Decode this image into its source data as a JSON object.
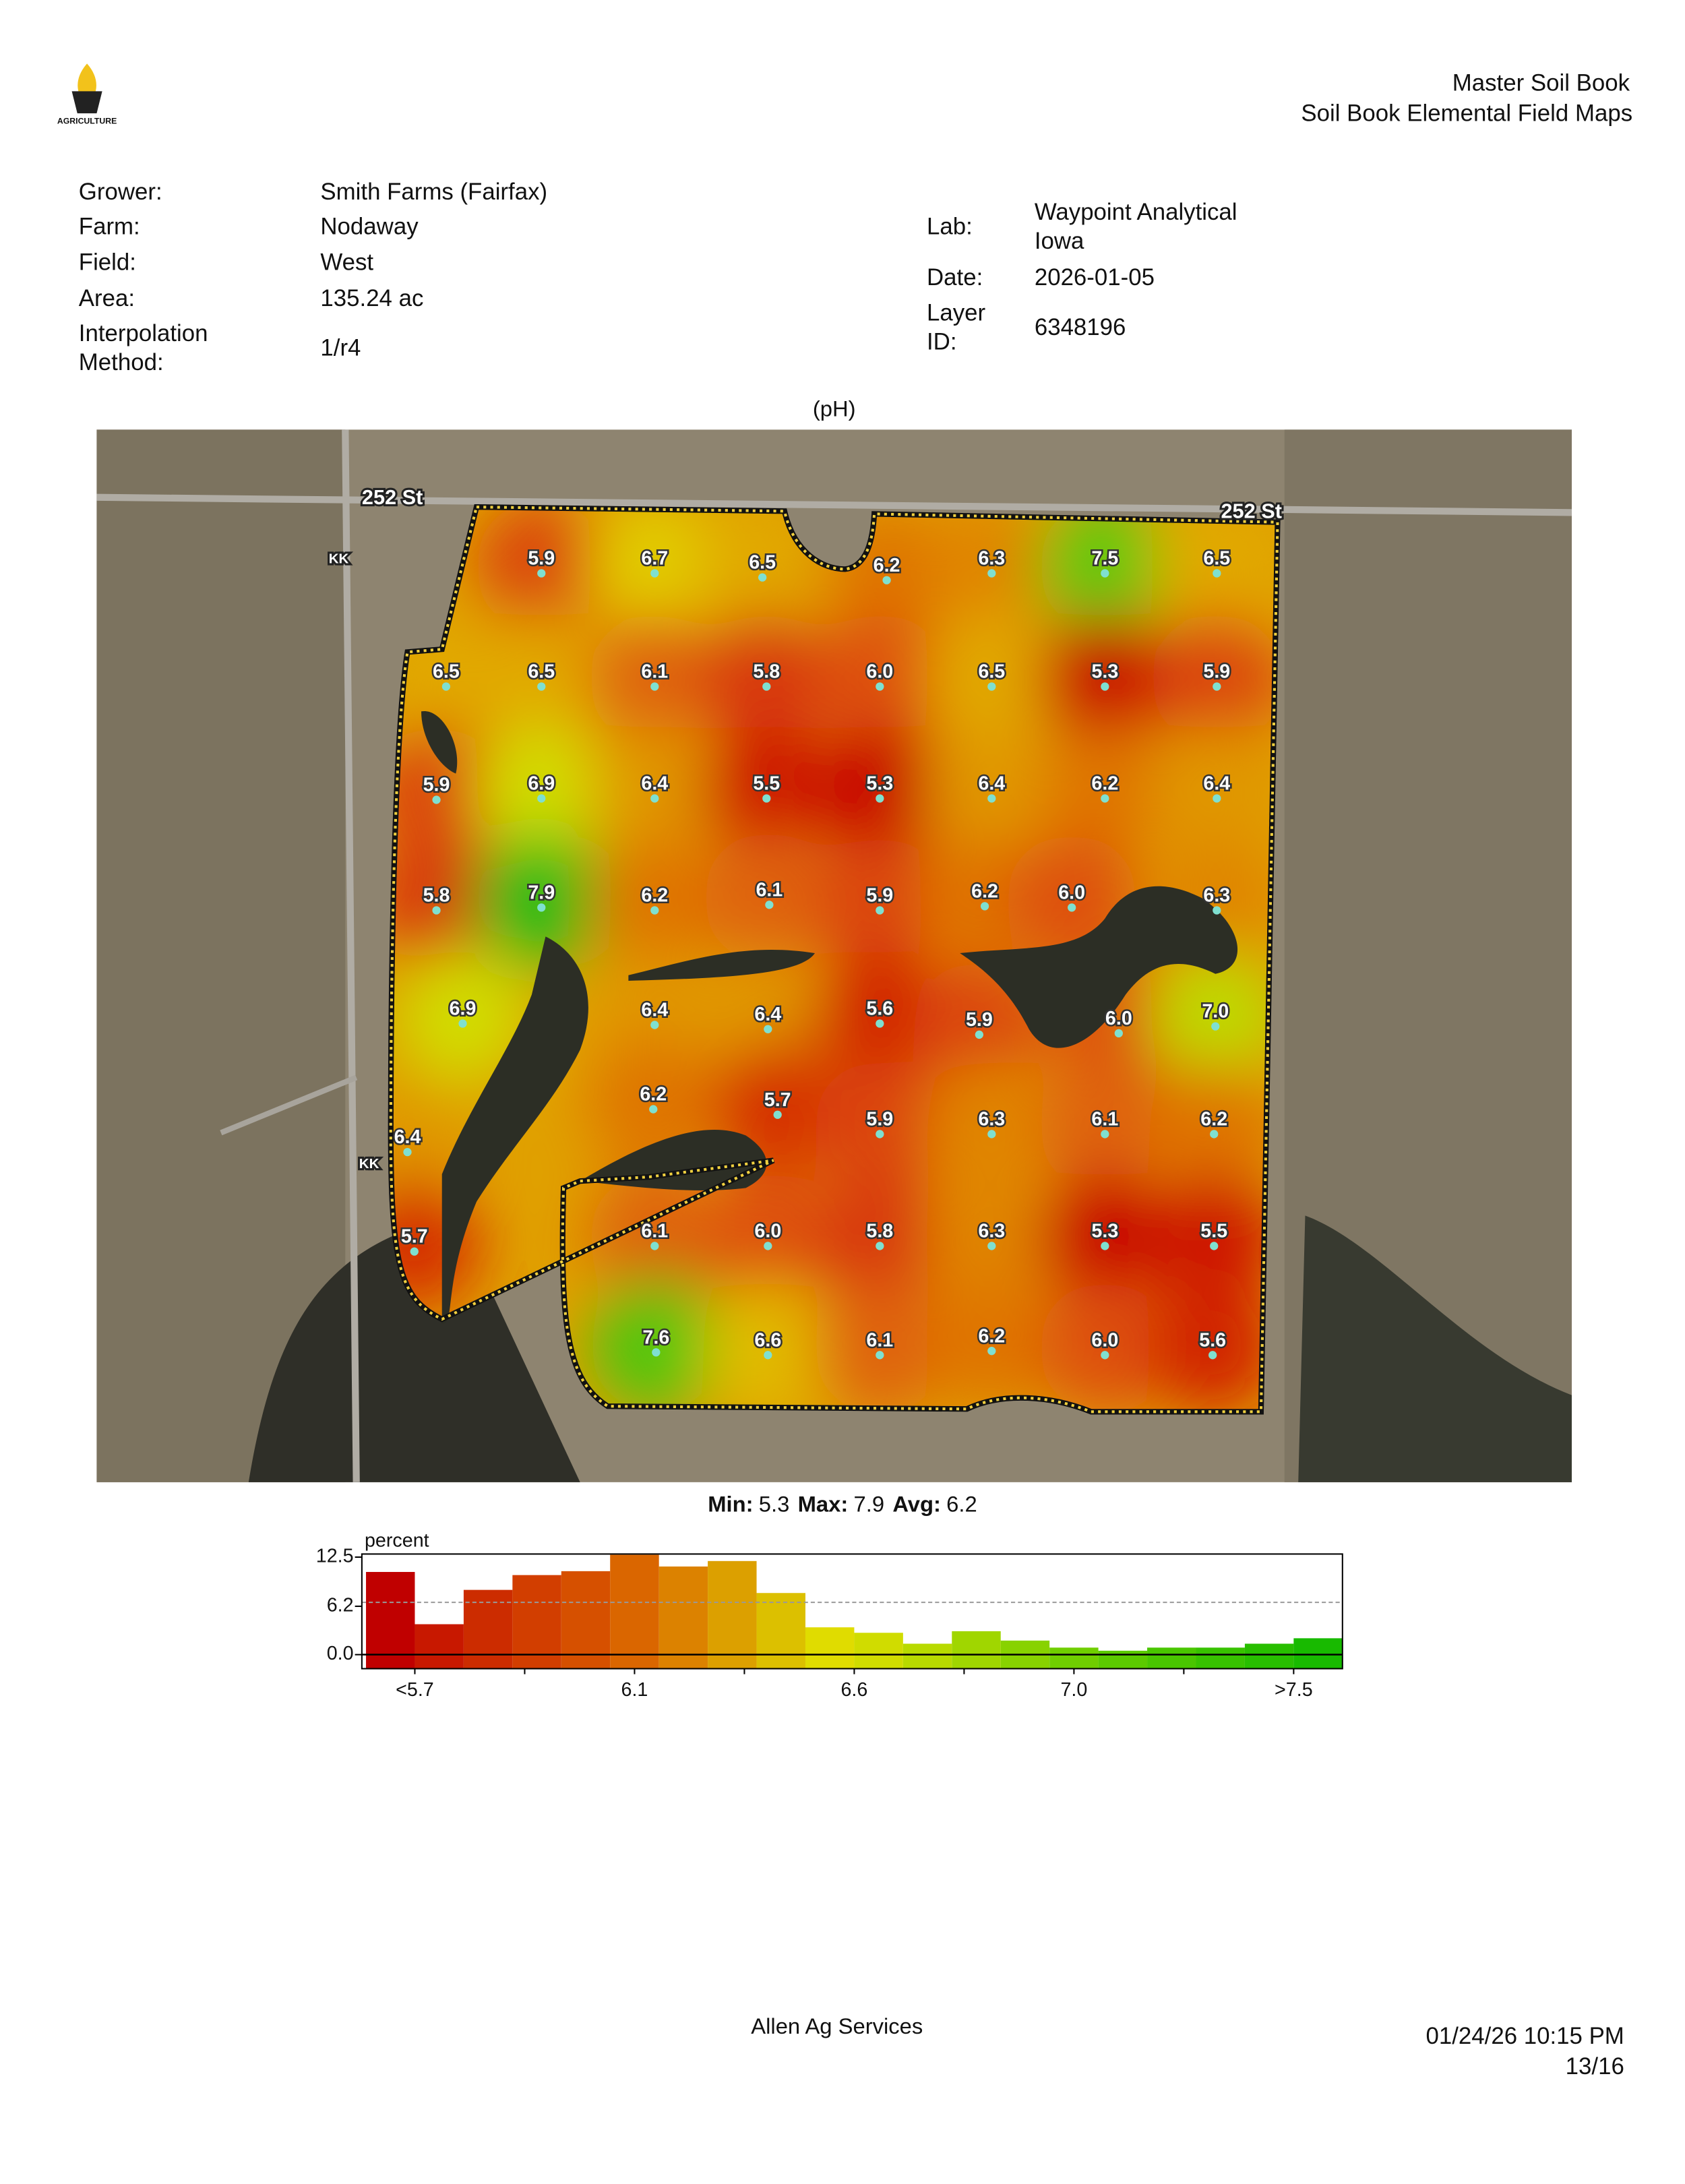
{
  "header": {
    "logo_text": "AGRICULTURE",
    "title": "Master Soil Book",
    "subtitle": "Soil Book Elemental Field Maps"
  },
  "info_left": [
    {
      "label": [
        "Grower:"
      ],
      "value": [
        "Smith Farms (Fairfax)"
      ]
    },
    {
      "label": [
        "Farm:"
      ],
      "value": [
        "Nodaway"
      ]
    },
    {
      "label": [
        "Field:"
      ],
      "value": [
        "West"
      ]
    },
    {
      "label": [
        "Area:"
      ],
      "value": [
        "135.24 ac"
      ]
    },
    {
      "label": [
        "Interpolation",
        "Method:"
      ],
      "value": [
        "1/r4"
      ]
    }
  ],
  "info_right": [
    {
      "label": [
        "Lab:"
      ],
      "value": [
        "Waypoint Analytical",
        "Iowa"
      ]
    },
    {
      "label": [
        "Date:"
      ],
      "value": [
        "2026-01-05"
      ]
    },
    {
      "label": [
        "Layer",
        "ID:"
      ],
      "value": [
        "6348196"
      ]
    }
  ],
  "map": {
    "title": "(pH)",
    "roads": [
      "252 St",
      "252 St",
      "KK",
      "KK"
    ],
    "samples": [
      "5.9",
      "6.7",
      "6.5",
      "6.2",
      "6.3",
      "7.5",
      "6.5",
      "6.5",
      "6.5",
      "6.1",
      "5.8",
      "6.0",
      "6.5",
      "5.3",
      "5.9",
      "5.9",
      "6.9",
      "6.4",
      "5.5",
      "5.3",
      "6.4",
      "6.2",
      "6.4",
      "5.8",
      "7.9",
      "6.2",
      "6.1",
      "5.9",
      "6.2",
      "6.0",
      "6.3",
      "6.9",
      "6.4",
      "6.4",
      "5.6",
      "5.9",
      "6.0",
      "7.0",
      "6.2",
      "5.7",
      "5.9",
      "6.3",
      "6.1",
      "6.2",
      "6.4",
      "5.7",
      "6.1",
      "6.0",
      "5.8",
      "6.3",
      "5.3",
      "5.5",
      "7.6",
      "6.6",
      "6.1",
      "6.2",
      "6.0",
      "5.6"
    ]
  },
  "stats": {
    "min_label": "Min:",
    "min": "5.3",
    "max_label": "Max:",
    "max": "7.9",
    "avg_label": "Avg:",
    "avg": "6.2"
  },
  "chart_data": {
    "type": "bar",
    "y_label": "percent",
    "values": [
      10.6,
      3.9,
      8.3,
      10.2,
      10.7,
      12.8,
      11.3,
      12.0,
      7.9,
      3.5,
      2.8,
      1.4,
      3.0,
      1.8,
      0.9,
      0.5,
      0.9,
      0.9,
      1.4,
      2.1
    ],
    "colors": [
      "#c00000",
      "#c81800",
      "#cc2c00",
      "#d23e00",
      "#d65000",
      "#da6600",
      "#dc8200",
      "#dca000",
      "#dcc000",
      "#e0dc00",
      "#d0dc00",
      "#b8da00",
      "#a0d600",
      "#88d200",
      "#70ce00",
      "#5cca00",
      "#4ac600",
      "#38c200",
      "#28be00",
      "#18ba00"
    ],
    "reference_line": 6.7,
    "ylim": [
      -1.8,
      12.9
    ],
    "yticks": [
      {
        "value": 0,
        "label": "0.0"
      },
      {
        "value": 6.2,
        "label": "6.2"
      },
      {
        "value": 12.5,
        "label": "12.5"
      }
    ],
    "xtick_labels": [
      "<5.7",
      "6.1",
      "6.6",
      "7.0",
      ">7.5"
    ]
  },
  "footer": {
    "company": "Allen Ag Services",
    "timestamp": "01/24/26 10:15 PM",
    "page": "13/16"
  }
}
